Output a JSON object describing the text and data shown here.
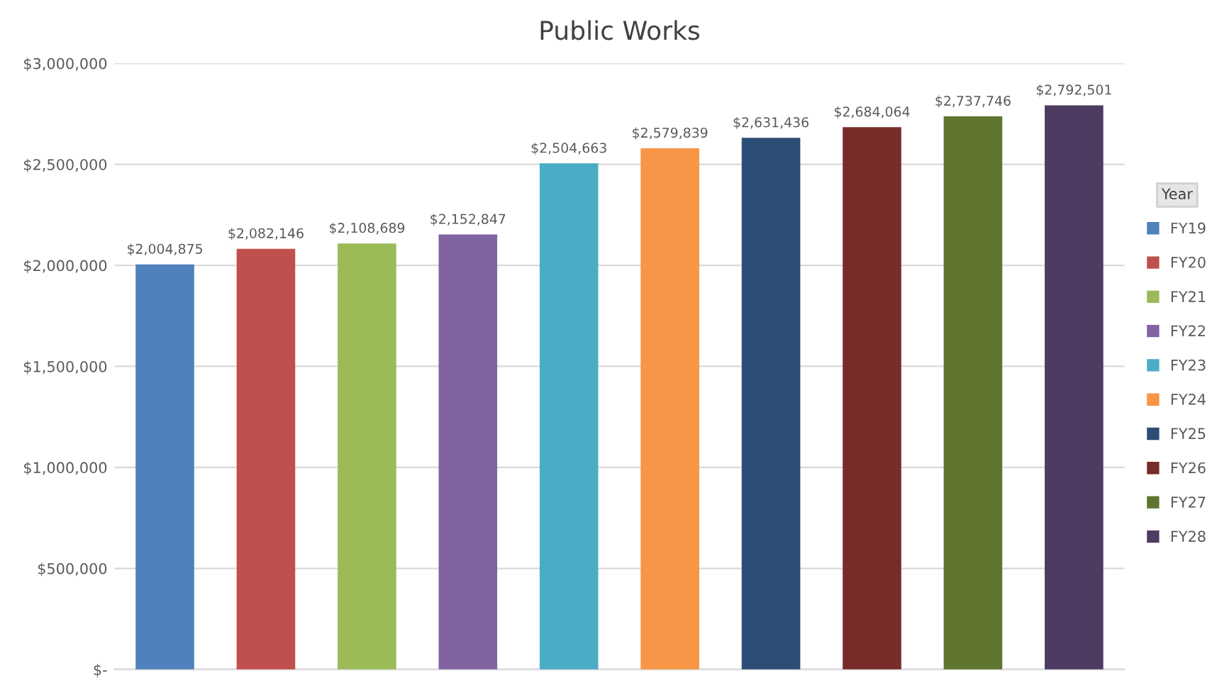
{
  "chart_data": {
    "type": "bar",
    "title": "Public Works",
    "legend_title": "Year",
    "categories": [
      null,
      null,
      null,
      null,
      null,
      null,
      null,
      null,
      null,
      null
    ],
    "series": [
      {
        "name": "FY19",
        "color": "#4f81bd",
        "values": [
          2004875,
          null,
          null,
          null,
          null,
          null,
          null,
          null,
          null,
          null
        ],
        "value_labels": [
          "$2,004,875",
          null,
          null,
          null,
          null,
          null,
          null,
          null,
          null,
          null
        ]
      },
      {
        "name": "FY20",
        "color": "#c0504d",
        "values": [
          null,
          2082146,
          null,
          null,
          null,
          null,
          null,
          null,
          null,
          null
        ],
        "value_labels": [
          null,
          "$2,082,146",
          null,
          null,
          null,
          null,
          null,
          null,
          null,
          null
        ]
      },
      {
        "name": "FY21",
        "color": "#9bbb59",
        "values": [
          null,
          null,
          2108689,
          null,
          null,
          null,
          null,
          null,
          null,
          null
        ],
        "value_labels": [
          null,
          null,
          "$2,108,689",
          null,
          null,
          null,
          null,
          null,
          null,
          null
        ]
      },
      {
        "name": "FY22",
        "color": "#8064a2",
        "values": [
          null,
          null,
          null,
          2152847,
          null,
          null,
          null,
          null,
          null,
          null
        ],
        "value_labels": [
          null,
          null,
          null,
          "$2,152,847",
          null,
          null,
          null,
          null,
          null,
          null
        ]
      },
      {
        "name": "FY23",
        "color": "#4bacc6",
        "values": [
          null,
          null,
          null,
          null,
          2504663,
          null,
          null,
          null,
          null,
          null
        ],
        "value_labels": [
          null,
          null,
          null,
          null,
          "$2,504,663",
          null,
          null,
          null,
          null,
          null
        ]
      },
      {
        "name": "FY24",
        "color": "#f79646",
        "values": [
          null,
          null,
          null,
          null,
          null,
          2579839,
          null,
          null,
          null,
          null
        ],
        "value_labels": [
          null,
          null,
          null,
          null,
          null,
          "$2,579,839",
          null,
          null,
          null,
          null
        ]
      },
      {
        "name": "FY25",
        "color": "#2c4d75",
        "values": [
          null,
          null,
          null,
          null,
          null,
          null,
          2631436,
          null,
          null,
          null
        ],
        "value_labels": [
          null,
          null,
          null,
          null,
          null,
          null,
          "$2,631,436",
          null,
          null,
          null
        ]
      },
      {
        "name": "FY26",
        "color": "#772c2a",
        "values": [
          null,
          null,
          null,
          null,
          null,
          null,
          null,
          2684064,
          null,
          null
        ],
        "value_labels": [
          null,
          null,
          null,
          null,
          null,
          null,
          null,
          "$2,684,064",
          null,
          null
        ]
      },
      {
        "name": "FY27",
        "color": "#5f7530",
        "values": [
          null,
          null,
          null,
          null,
          null,
          null,
          null,
          null,
          2737746,
          null
        ],
        "value_labels": [
          null,
          null,
          null,
          null,
          null,
          null,
          null,
          null,
          "$2,737,746",
          null
        ]
      },
      {
        "name": "FY28",
        "color": "#4d3b62",
        "values": [
          null,
          null,
          null,
          null,
          null,
          null,
          null,
          null,
          null,
          2792501
        ],
        "value_labels": [
          null,
          null,
          null,
          null,
          null,
          null,
          null,
          null,
          null,
          "$2,792,501"
        ]
      }
    ],
    "ylim": [
      0,
      3000000
    ],
    "yticks": [
      {
        "value": 0,
        "label": "$-"
      },
      {
        "value": 500000,
        "label": "$500,000"
      },
      {
        "value": 1000000,
        "label": "$1,000,000"
      },
      {
        "value": 1500000,
        "label": "$1,500,000"
      },
      {
        "value": 2000000,
        "label": "$2,000,000"
      },
      {
        "value": 2500000,
        "label": "$2,500,000"
      },
      {
        "value": 3000000,
        "label": "$3,000,000"
      }
    ],
    "grid": "y",
    "legend": "right"
  }
}
